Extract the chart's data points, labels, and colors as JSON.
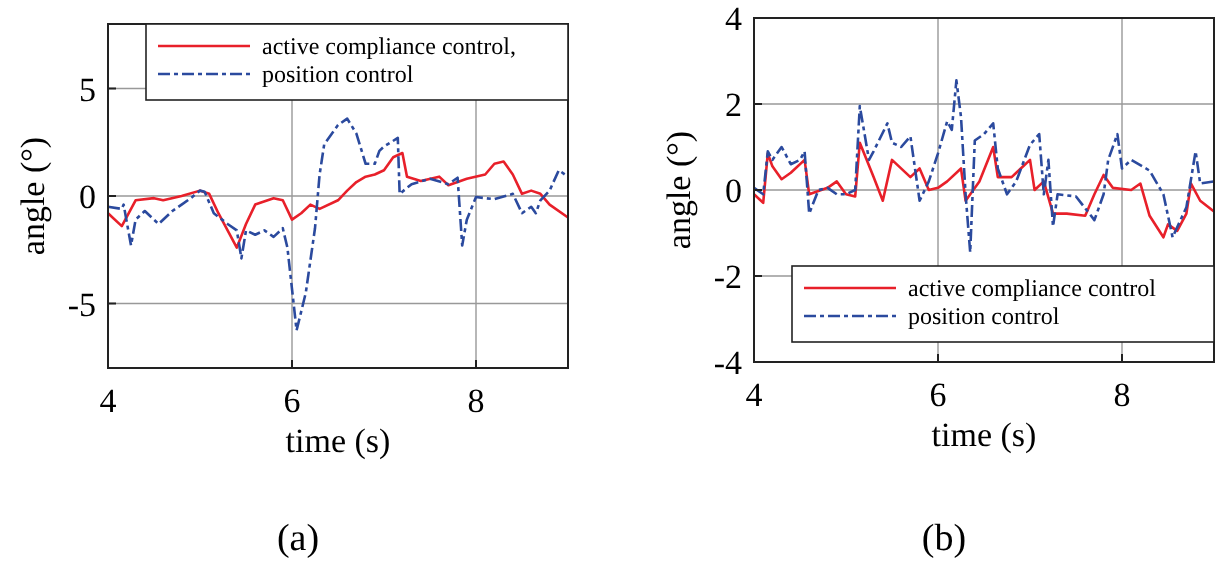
{
  "chart_data": [
    {
      "type": "line",
      "title": "(a)",
      "xlabel": "time (s)",
      "ylabel": "angle (°)",
      "xlim": [
        4,
        9
      ],
      "ylim": [
        -8,
        8
      ],
      "xticks": [
        4,
        6,
        8
      ],
      "yticks": [
        -5,
        0,
        5
      ],
      "grid": true,
      "legend": "top right",
      "marker": "none",
      "series": [
        {
          "name": "active compliance control,",
          "color": "#e8202a",
          "line_style": "solid",
          "x": [
            4.0,
            4.15,
            4.3,
            4.5,
            4.6,
            4.8,
            5.0,
            5.1,
            5.2,
            5.4,
            5.5,
            5.6,
            5.8,
            5.9,
            6.0,
            6.1,
            6.2,
            6.3,
            6.5,
            6.6,
            6.7,
            6.8,
            6.9,
            7.0,
            7.1,
            7.2,
            7.25,
            7.4,
            7.6,
            7.7,
            7.9,
            8.1,
            8.2,
            8.3,
            8.4,
            8.5,
            8.6,
            8.7,
            8.8,
            9.0
          ],
          "values": [
            -0.8,
            -1.4,
            -0.2,
            -0.1,
            -0.2,
            0,
            0.25,
            0.1,
            -0.8,
            -2.4,
            -1.3,
            -0.4,
            -0.1,
            -0.2,
            -1.1,
            -0.8,
            -0.4,
            -0.6,
            -0.2,
            0.25,
            0.65,
            0.9,
            1.0,
            1.2,
            1.8,
            2.0,
            0.9,
            0.7,
            0.9,
            0.5,
            0.8,
            1.0,
            1.5,
            1.6,
            1.0,
            0.1,
            0.25,
            0.1,
            -0.4,
            -1.0
          ]
        },
        {
          "name": "position control",
          "color": "#2b4a9e",
          "line_style": "dashed",
          "x": [
            4.0,
            4.15,
            4.17,
            4.25,
            4.3,
            4.4,
            4.55,
            4.7,
            4.8,
            4.9,
            5.0,
            5.05,
            5.15,
            5.3,
            5.4,
            5.45,
            5.5,
            5.6,
            5.7,
            5.8,
            5.9,
            5.95,
            6.05,
            6.15,
            6.25,
            6.3,
            6.35,
            6.45,
            6.5,
            6.6,
            6.7,
            6.8,
            6.9,
            6.95,
            7.0,
            7.15,
            7.17,
            7.3,
            7.5,
            7.7,
            7.8,
            7.85,
            7.9,
            8.0,
            8.2,
            8.4,
            8.5,
            8.6,
            8.65,
            8.7,
            8.8,
            8.9,
            9.0
          ],
          "values": [
            -0.5,
            -0.6,
            -0.4,
            -2.3,
            -1.1,
            -0.7,
            -1.3,
            -0.7,
            -0.4,
            -0.1,
            0.25,
            0.2,
            -0.8,
            -1.3,
            -1.6,
            -2.9,
            -1.6,
            -1.8,
            -1.6,
            -1.9,
            -1.5,
            -2.4,
            -6.25,
            -4.5,
            -1.5,
            1.0,
            2.4,
            3.0,
            3.3,
            3.6,
            2.9,
            1.5,
            1.5,
            2.1,
            2.3,
            2.7,
            0.1,
            0.55,
            0.8,
            0.55,
            0.85,
            -2.3,
            -1.1,
            -0.05,
            -0.15,
            0.1,
            -0.8,
            -0.5,
            -0.8,
            -0.2,
            0.25,
            1.2,
            0.9
          ]
        }
      ]
    },
    {
      "type": "line",
      "title": "(b)",
      "xlabel": "time (s)",
      "ylabel": "angle (°)",
      "xlim": [
        4,
        9
      ],
      "ylim": [
        -4,
        4
      ],
      "xticks": [
        4,
        6,
        8
      ],
      "yticks": [
        -4,
        -2,
        0,
        2,
        4
      ],
      "grid": true,
      "legend": "bottom right",
      "marker": "none",
      "series": [
        {
          "name": "active compliance control",
          "color": "#e8202a",
          "line_style": "solid",
          "x": [
            4.0,
            4.1,
            4.15,
            4.2,
            4.3,
            4.4,
            4.55,
            4.6,
            4.8,
            4.9,
            5.0,
            5.1,
            5.15,
            5.3,
            5.4,
            5.5,
            5.7,
            5.8,
            5.9,
            6.0,
            6.1,
            6.25,
            6.3,
            6.45,
            6.6,
            6.65,
            6.8,
            6.9,
            7.0,
            7.05,
            7.15,
            7.25,
            7.4,
            7.6,
            7.7,
            7.8,
            7.9,
            8.1,
            8.2,
            8.3,
            8.45,
            8.5,
            8.6,
            8.7,
            8.75,
            8.85,
            9.0
          ],
          "values": [
            -0.1,
            -0.3,
            0.85,
            0.55,
            0.25,
            0.4,
            0.7,
            -0.1,
            0.05,
            0.2,
            -0.1,
            -0.15,
            1.1,
            0.3,
            -0.25,
            0.7,
            0.3,
            0.5,
            0,
            0.05,
            0.2,
            0.5,
            -0.25,
            0.2,
            1.0,
            0.3,
            0.3,
            0.5,
            0.7,
            0,
            0.2,
            -0.55,
            -0.55,
            -0.6,
            -0.1,
            0.35,
            0.05,
            0,
            0.15,
            -0.6,
            -1.1,
            -0.8,
            -0.95,
            -0.55,
            0.15,
            -0.25,
            -0.5
          ]
        },
        {
          "name": "position control",
          "color": "#2b4a9e",
          "line_style": "dashed",
          "x": [
            4.0,
            4.1,
            4.15,
            4.2,
            4.3,
            4.4,
            4.5,
            4.55,
            4.6,
            4.7,
            4.8,
            4.9,
            5.0,
            5.1,
            5.15,
            5.25,
            5.3,
            5.45,
            5.5,
            5.6,
            5.7,
            5.8,
            5.9,
            6.0,
            6.1,
            6.15,
            6.2,
            6.25,
            6.3,
            6.35,
            6.4,
            6.5,
            6.6,
            6.65,
            6.75,
            6.85,
            7.0,
            7.1,
            7.15,
            7.2,
            7.25,
            7.3,
            7.5,
            7.7,
            7.8,
            7.85,
            7.95,
            8.0,
            8.1,
            8.3,
            8.45,
            8.55,
            8.7,
            8.8,
            8.85,
            9.0
          ],
          "values": [
            0.05,
            -0.1,
            0.9,
            0.7,
            1.0,
            0.6,
            0.7,
            0.9,
            -0.55,
            0,
            0.05,
            -0.1,
            -0.1,
            0,
            1.95,
            0.7,
            0.9,
            1.55,
            1.1,
            1.0,
            1.25,
            -0.25,
            0.2,
            0.85,
            1.6,
            1.4,
            2.55,
            1.7,
            -0.1,
            -1.45,
            1.15,
            1.3,
            1.55,
            0.5,
            -0.1,
            0.2,
            1.05,
            1.3,
            -0.1,
            0.7,
            -0.85,
            -0.1,
            -0.15,
            -0.7,
            -0.1,
            0.7,
            1.3,
            0.5,
            0.7,
            0.45,
            -0.1,
            -1.1,
            -0.4,
            0.9,
            0.15,
            0.2
          ]
        }
      ]
    }
  ]
}
